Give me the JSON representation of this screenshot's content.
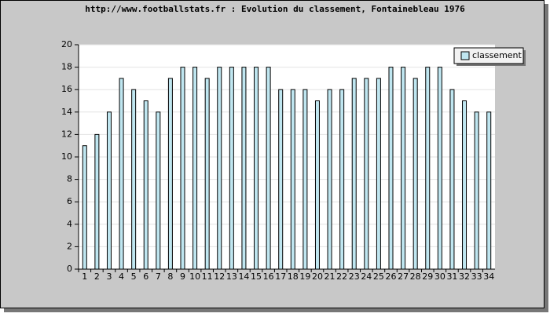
{
  "chart_data": {
    "type": "bar",
    "title": "http://www.footballstats.fr : Evolution du classement, Fontainebleau 1976",
    "categories": [
      1,
      2,
      3,
      4,
      5,
      6,
      7,
      8,
      9,
      10,
      11,
      12,
      13,
      14,
      15,
      16,
      17,
      18,
      19,
      20,
      21,
      22,
      23,
      24,
      25,
      26,
      27,
      28,
      29,
      30,
      31,
      32,
      33,
      34
    ],
    "series": [
      {
        "name": "classement",
        "color": "#bfe6f0",
        "values": [
          11,
          12,
          14,
          17,
          16,
          15,
          14,
          17,
          18,
          18,
          17,
          18,
          18,
          18,
          18,
          18,
          16,
          16,
          16,
          15,
          16,
          16,
          17,
          17,
          17,
          18,
          18,
          17,
          18,
          18,
          16,
          15,
          14,
          14
        ]
      }
    ],
    "ylim": [
      0,
      20
    ],
    "yticks": [
      0,
      2,
      4,
      6,
      8,
      10,
      12,
      14,
      16,
      18,
      20
    ],
    "grid": true,
    "legend": "top-right"
  }
}
